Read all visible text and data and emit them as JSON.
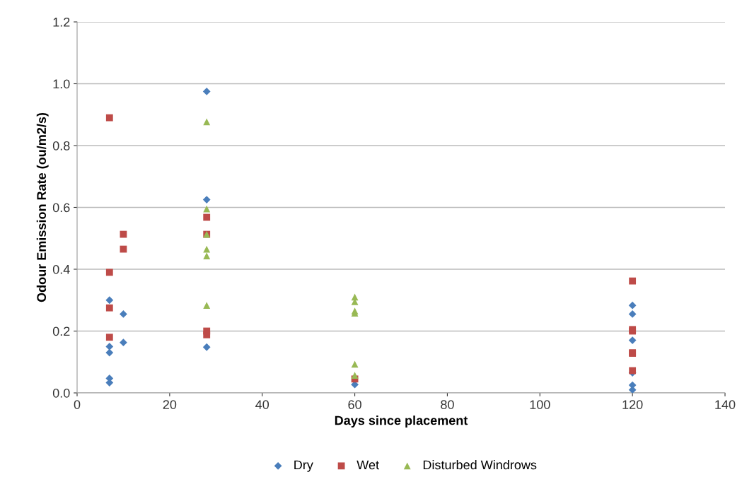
{
  "chart_data": {
    "type": "scatter",
    "xlabel": "Days since placement",
    "ylabel": "Odour Emission Rate (ou/m2/s)",
    "xlim": [
      0,
      140
    ],
    "xticks": [
      0,
      20,
      40,
      60,
      80,
      100,
      120,
      140
    ],
    "ylim": [
      0,
      1.2
    ],
    "yticks": [
      {
        "value": 0,
        "label": "0.0"
      },
      {
        "value": 0.2,
        "label": "0.2"
      },
      {
        "value": 0.4,
        "label": "0.4"
      },
      {
        "value": 0.6,
        "label": "0.6"
      },
      {
        "value": 0.8,
        "label": "0.8"
      },
      {
        "value": 1.0,
        "label": "1.0"
      },
      {
        "value": 1.2,
        "label": "1.2"
      }
    ],
    "grid": "y",
    "legend": "bottom",
    "series": [
      {
        "name": "Dry",
        "color": "#4a7ebb",
        "marker": "diamond",
        "x": [
          7,
          7,
          7,
          7,
          7,
          10,
          10,
          28,
          28,
          28,
          60,
          120,
          120,
          120,
          120,
          120,
          120
        ],
        "values": [
          0.3,
          0.15,
          0.13,
          0.047,
          0.033,
          0.255,
          0.163,
          0.975,
          0.625,
          0.148,
          0.027,
          0.283,
          0.255,
          0.17,
          0.065,
          0.025,
          0.01
        ]
      },
      {
        "name": "Wet",
        "color": "#be4b48",
        "marker": "square",
        "x": [
          7,
          7,
          7,
          7,
          10,
          10,
          28,
          28,
          28,
          28,
          60,
          120,
          120,
          120,
          120,
          120,
          120
        ],
        "values": [
          0.89,
          0.39,
          0.275,
          0.18,
          0.513,
          0.465,
          0.568,
          0.513,
          0.2,
          0.188,
          0.045,
          0.362,
          0.205,
          0.2,
          0.13,
          0.128,
          0.072
        ]
      },
      {
        "name": "Disturbed Windrows",
        "color": "#98b954",
        "marker": "triangle",
        "x": [
          28,
          28,
          28,
          28,
          28,
          28,
          60,
          60,
          60,
          60,
          60,
          60
        ],
        "values": [
          0.877,
          0.595,
          0.513,
          0.465,
          0.443,
          0.283,
          0.31,
          0.295,
          0.265,
          0.258,
          0.093,
          0.057
        ]
      }
    ]
  }
}
